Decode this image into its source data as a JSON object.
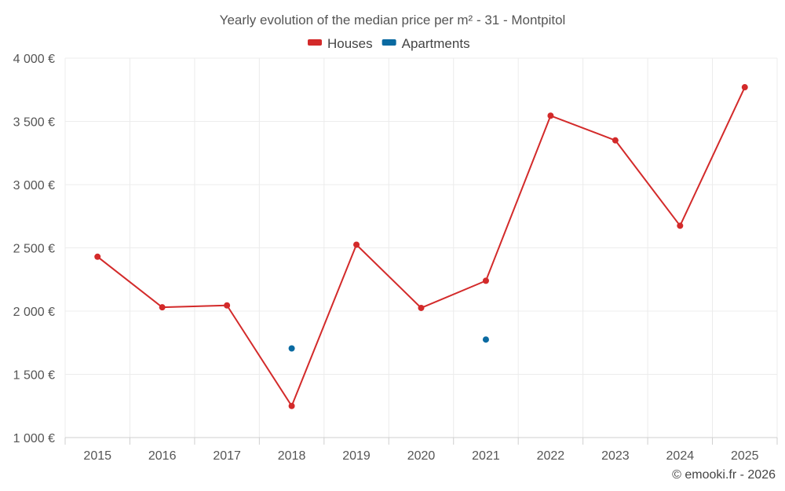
{
  "chart_data": {
    "type": "line",
    "title": "Yearly evolution of the median price per m² - 31 - Montpitol",
    "categories": [
      "2015",
      "2016",
      "2017",
      "2018",
      "2019",
      "2020",
      "2021",
      "2022",
      "2023",
      "2024",
      "2025"
    ],
    "series": [
      {
        "name": "Houses",
        "color": "#d32a2a",
        "values": [
          2430,
          2030,
          2045,
          1250,
          2525,
          2025,
          2240,
          3545,
          3350,
          2675,
          3770
        ]
      },
      {
        "name": "Apartments",
        "color": "#0a6aa1",
        "values": [
          null,
          null,
          null,
          1705,
          null,
          null,
          1775,
          null,
          null,
          null,
          null
        ]
      }
    ],
    "ylim": [
      1000,
      4000
    ],
    "yticks": [
      1000,
      1500,
      2000,
      2500,
      3000,
      3500,
      4000
    ],
    "ytick_labels": [
      "1 000 €",
      "1 500 €",
      "2 000 €",
      "2 500 €",
      "3 000 €",
      "3 500 €",
      "4 000 €"
    ],
    "xlabel": "",
    "ylabel": "",
    "legend_position": "top-center",
    "grid": true
  },
  "credit": "© emooki.fr - 2026"
}
